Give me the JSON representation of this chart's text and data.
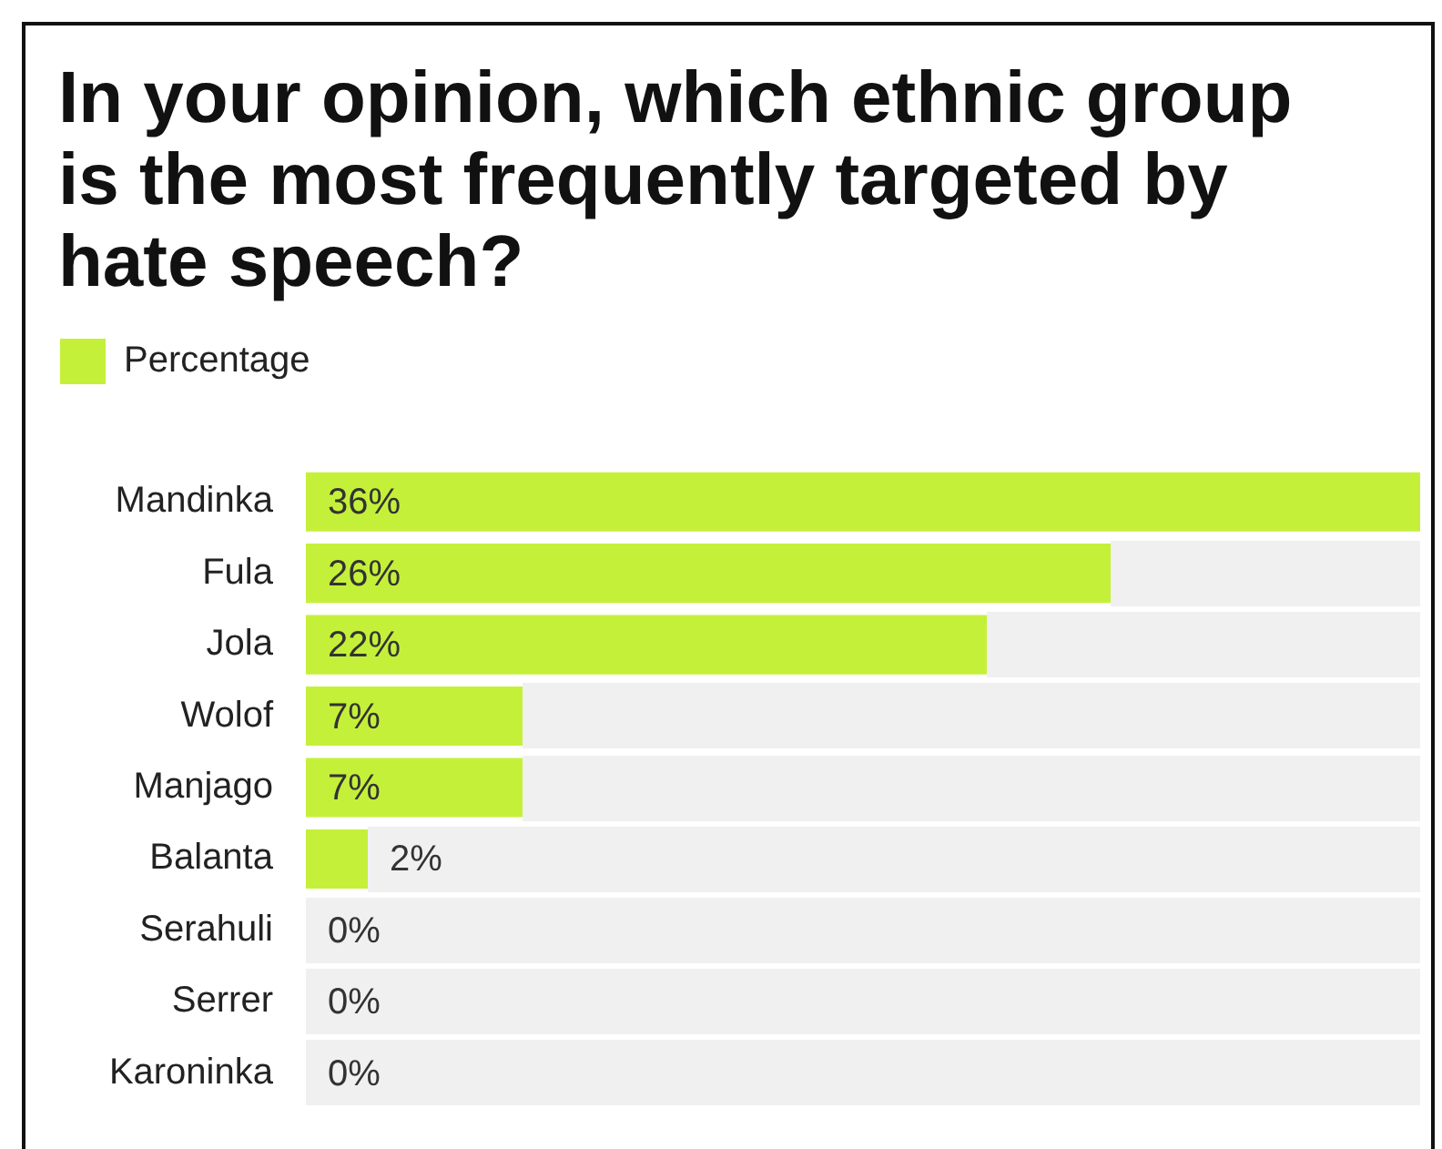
{
  "chart_data": {
    "type": "bar",
    "orientation": "horizontal",
    "title": "In your opinion, which ethnic group is the most frequently targeted by hate speech?",
    "categories": [
      "Mandinka",
      "Fula",
      "Jola",
      "Wolof",
      "Manjago",
      "Balanta",
      "Serahuli",
      "Serrer",
      "Karoninka"
    ],
    "series": [
      {
        "name": "Percentage",
        "color": "#c5f03a",
        "values": [
          36,
          26,
          22,
          7,
          7,
          2,
          0,
          0,
          0
        ],
        "value_labels": [
          "36%",
          "26%",
          "22%",
          "7%",
          "7%",
          "2%",
          "0%",
          "0%",
          "0%"
        ]
      }
    ],
    "xlim": [
      0,
      36
    ],
    "tick_labels": "y",
    "legend": "top left"
  }
}
